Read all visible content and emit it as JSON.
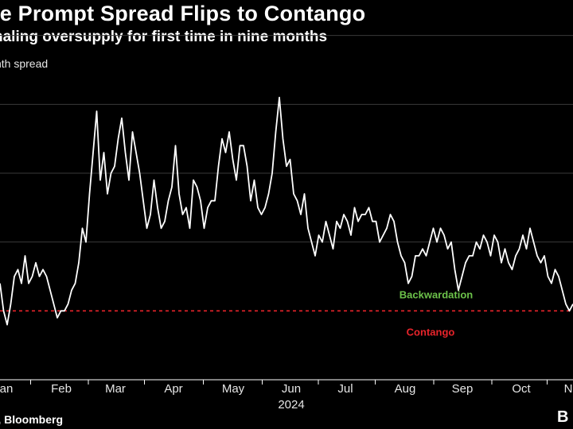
{
  "header": {
    "title": "le Prompt Spread Flips to Contango",
    "subtitle": "naling oversupply for first time in nine months"
  },
  "footer": {
    "source": "', Bloomberg",
    "brand": "B"
  },
  "colors": {
    "background": "#000000",
    "line": "#ffffff",
    "grid": "#3a3a3a",
    "zero_line": "#e8242b",
    "backwardation": "#6cc24a",
    "contango": "#e8242b"
  },
  "chart_data": {
    "type": "line",
    "ylabel": "nth spread",
    "year_label": "2024",
    "x_ticks": [
      "an",
      "Feb",
      "Mar",
      "Apr",
      "May",
      "Jun",
      "Jul",
      "Aug",
      "Sep",
      "Oct",
      "N"
    ],
    "x_range": [
      0,
      320
    ],
    "ylim": [
      -1.0,
      3.8
    ],
    "gridlines": [
      0,
      1,
      2,
      3,
      4
    ],
    "grid": true,
    "annotations": {
      "backwardation": "Backwardation",
      "contango": "Contango"
    },
    "series": [
      {
        "x": [
          0,
          2,
          4,
          6,
          8,
          10,
          12,
          14,
          16,
          18,
          20,
          22,
          24,
          26,
          28,
          30,
          32,
          34,
          36,
          38,
          40,
          42,
          44,
          46,
          48,
          50,
          52,
          54,
          56,
          58,
          60,
          62,
          64,
          66,
          68,
          70,
          72,
          74,
          76,
          78,
          80,
          82,
          84,
          86,
          88,
          90,
          92,
          94,
          96,
          98,
          100,
          102,
          104,
          106,
          108,
          110,
          112,
          114,
          116,
          118,
          120,
          122,
          124,
          126,
          128,
          130,
          132,
          134,
          136,
          138,
          140,
          142,
          144,
          146,
          148,
          150,
          152,
          154,
          156,
          158,
          160,
          162,
          164,
          166,
          168,
          170,
          172,
          174,
          176,
          178,
          180,
          182,
          184,
          186,
          188,
          190,
          192,
          194,
          196,
          198,
          200,
          202,
          204,
          206,
          208,
          210,
          212,
          214,
          216,
          218,
          220,
          222,
          224,
          226,
          228,
          230,
          232,
          234,
          236,
          238,
          240,
          242,
          244,
          246,
          248,
          250,
          252,
          254,
          256,
          258,
          260,
          262,
          264,
          266,
          268,
          270,
          272,
          274,
          276,
          278,
          280,
          282,
          284,
          286,
          288,
          290,
          292,
          294,
          296,
          298,
          300,
          302,
          304,
          306,
          308,
          310,
          312,
          314,
          316,
          318,
          320
        ],
        "y": [
          0.4,
          0.0,
          -0.2,
          0.1,
          0.5,
          0.6,
          0.4,
          0.8,
          0.4,
          0.5,
          0.7,
          0.5,
          0.6,
          0.5,
          0.3,
          0.1,
          -0.1,
          0.0,
          0.0,
          0.1,
          0.3,
          0.4,
          0.7,
          1.2,
          1.0,
          1.7,
          2.3,
          2.9,
          1.9,
          2.3,
          1.7,
          2.0,
          2.1,
          2.5,
          2.8,
          2.3,
          1.9,
          2.6,
          2.3,
          2.0,
          1.6,
          1.2,
          1.4,
          1.9,
          1.5,
          1.2,
          1.3,
          1.6,
          1.8,
          2.4,
          1.7,
          1.4,
          1.5,
          1.2,
          1.9,
          1.8,
          1.6,
          1.2,
          1.5,
          1.6,
          1.6,
          2.1,
          2.5,
          2.3,
          2.6,
          2.2,
          1.9,
          2.4,
          2.4,
          2.1,
          1.6,
          1.9,
          1.5,
          1.4,
          1.5,
          1.7,
          2.0,
          2.6,
          3.1,
          2.5,
          2.1,
          2.2,
          1.7,
          1.6,
          1.4,
          1.7,
          1.2,
          1.0,
          0.8,
          1.1,
          1.0,
          1.3,
          1.1,
          0.9,
          1.3,
          1.2,
          1.4,
          1.3,
          1.1,
          1.5,
          1.3,
          1.4,
          1.4,
          1.5,
          1.3,
          1.3,
          1.0,
          1.1,
          1.2,
          1.4,
          1.3,
          1.0,
          0.8,
          0.7,
          0.4,
          0.5,
          0.8,
          0.8,
          0.9,
          0.8,
          1.0,
          1.2,
          1.0,
          1.2,
          1.1,
          0.9,
          1.0,
          0.6,
          0.3,
          0.5,
          0.7,
          0.8,
          0.8,
          1.0,
          0.9,
          1.1,
          1.0,
          0.8,
          1.1,
          1.0,
          0.7,
          0.9,
          0.7,
          0.6,
          0.8,
          0.9,
          1.1,
          0.9,
          1.2,
          1.0,
          0.8,
          0.7,
          0.8,
          0.5,
          0.4,
          0.6,
          0.5,
          0.3,
          0.1,
          0.0,
          0.1
        ],
        "note": ""
      }
    ]
  }
}
